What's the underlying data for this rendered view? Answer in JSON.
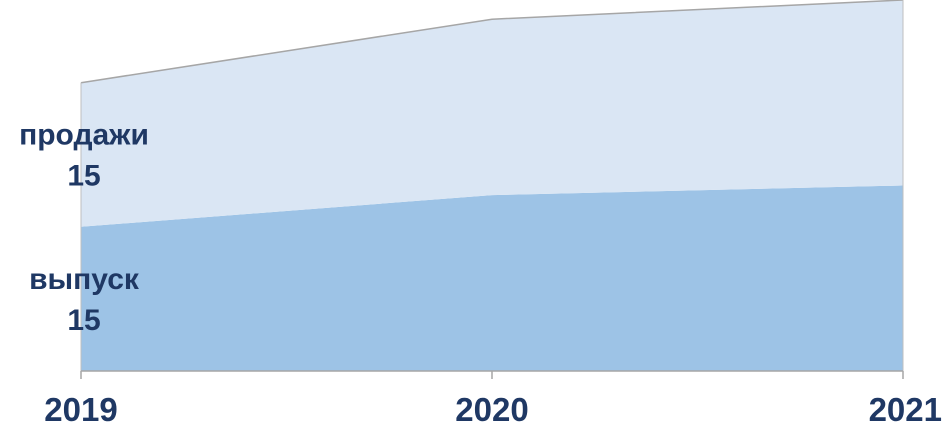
{
  "chart_data": {
    "type": "area",
    "stacked": true,
    "categories": [
      "2019",
      "2020",
      "2021"
    ],
    "series": [
      {
        "name": "выпуск",
        "values": [
          15,
          18.3,
          19.3
        ],
        "label_text": "15",
        "color": "#9dc3e6"
      },
      {
        "name": "продажи",
        "values": [
          15,
          18.3,
          19.3
        ],
        "label_text": "15",
        "color": "#dae6f4"
      }
    ],
    "ylim": [
      0,
      38.6
    ],
    "grid": false,
    "legend": "none",
    "labels_position": "left, inside plot at first category"
  }
}
